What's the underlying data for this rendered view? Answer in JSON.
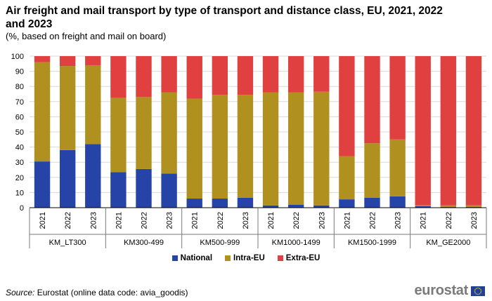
{
  "header": {
    "title": "Air freight and mail transport by type of transport and distance class, EU, 2021, 2022 and 2023",
    "subtitle": "(%, based on freight and mail on board)"
  },
  "footer": {
    "source_label": "Source:",
    "source_text": " Eurostat (online data code: avia_goodis)",
    "logo_text": "eurostat"
  },
  "colors": {
    "national": "#2644a8",
    "intra_eu": "#b09120",
    "extra_eu": "#e04040",
    "grid": "#d9d9d9",
    "axis": "#000000"
  },
  "chart_data": {
    "type": "bar",
    "stacked": true,
    "ylim": [
      0,
      100
    ],
    "yticks": [
      0,
      10,
      20,
      30,
      40,
      50,
      60,
      70,
      80,
      90,
      100
    ],
    "grid": true,
    "legend_position": "bottom-center",
    "groups": [
      "KM_LT300",
      "KM300-499",
      "KM500-999",
      "KM1000-1499",
      "KM1500-1999",
      "KM_GE2000"
    ],
    "years": [
      "2021",
      "2022",
      "2023"
    ],
    "series": [
      {
        "name": "National",
        "values": [
          30.5,
          38,
          42,
          23.5,
          25.5,
          22.5,
          6,
          6,
          6.5,
          1.5,
          2,
          1.5,
          5.5,
          6.5,
          7.5,
          1,
          0.5,
          0.5
        ]
      },
      {
        "name": "Intra-EU",
        "values": [
          65.5,
          55.5,
          52,
          49,
          47.5,
          53.5,
          66,
          68.5,
          68,
          74.5,
          74,
          75,
          28.5,
          36,
          37.5,
          0.5,
          1,
          1
        ]
      },
      {
        "name": "Extra-EU",
        "values": [
          4,
          6.5,
          6,
          27.5,
          27,
          24,
          28,
          25.5,
          25.5,
          24,
          24,
          23.5,
          66,
          57.5,
          55,
          98.5,
          98.5,
          98.5
        ]
      }
    ]
  }
}
